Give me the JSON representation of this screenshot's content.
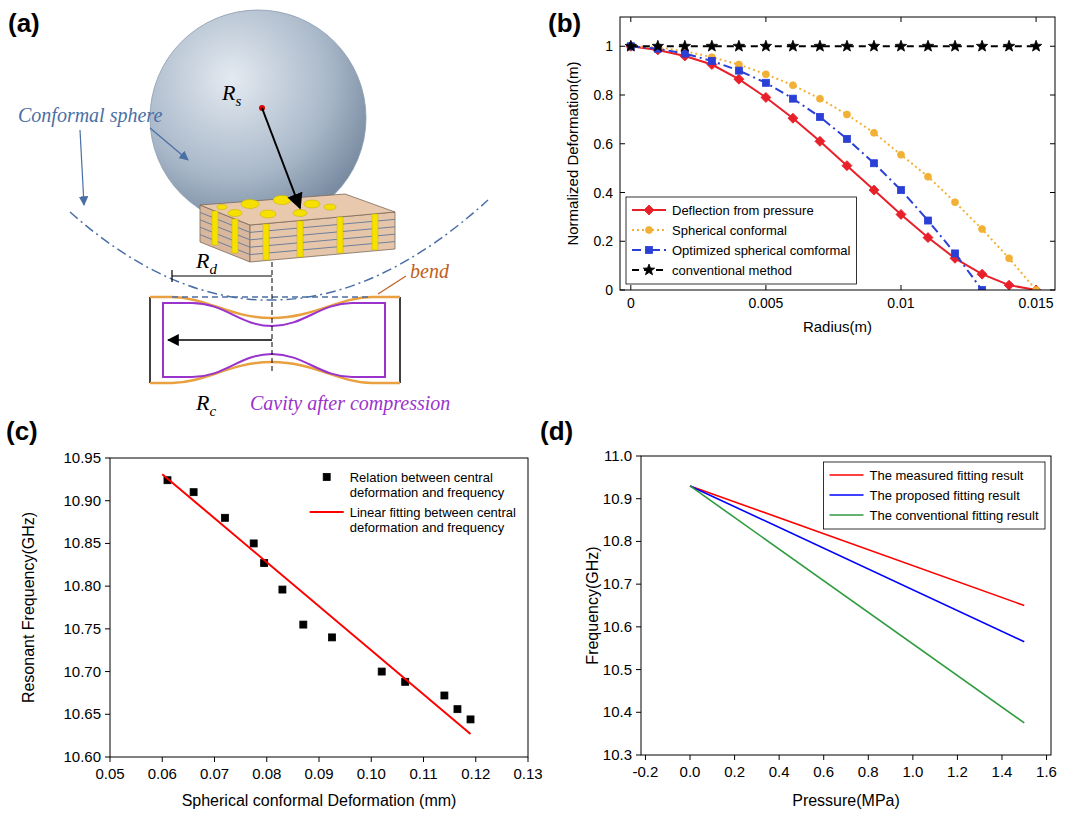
{
  "diagram": {
    "panel_label": "(a)",
    "sphere_radius": {
      "text": "R",
      "sub": "s"
    },
    "conformal_sphere": "Conformal sphere",
    "deform_radius": {
      "text": "R",
      "sub": "d"
    },
    "bend": "bend",
    "cavity_radius": {
      "text": "R",
      "sub": "c"
    },
    "cavity": "Cavity after compression"
  },
  "chart_data": [
    {
      "type": "line",
      "panel_label": "(b)",
      "x_label": "Radius(m)",
      "y_label": "Normalized Deformation(m)",
      "xlim": [
        -0.0004,
        0.0157
      ],
      "xticks": [
        0,
        0.005,
        0.01,
        0.015
      ],
      "ylim": [
        0,
        1.12
      ],
      "yticks": [
        0,
        0.2,
        0.4,
        0.6,
        0.8,
        1
      ],
      "grid": false,
      "legend": "lower left",
      "series": [
        {
          "name": "Deflection from pressure",
          "color": "#e8202a",
          "marker": "diamond",
          "line_style": "solid",
          "x": [
            0,
            0.001,
            0.002,
            0.003,
            0.004,
            0.005,
            0.006,
            0.007,
            0.008,
            0.009,
            0.01,
            0.011,
            0.012,
            0.013,
            0.014,
            0.015
          ],
          "values": [
            1,
            0.985,
            0.96,
            0.925,
            0.865,
            0.79,
            0.705,
            0.61,
            0.51,
            0.41,
            0.31,
            0.215,
            0.13,
            0.065,
            0.02,
            0
          ]
        },
        {
          "name": "Spherical conformal",
          "color": "#f2b135",
          "marker": "circle",
          "line_style": "dotted",
          "x": [
            0,
            0.001,
            0.002,
            0.003,
            0.004,
            0.005,
            0.006,
            0.007,
            0.008,
            0.009,
            0.01,
            0.011,
            0.012,
            0.013,
            0.014,
            0.015
          ],
          "values": [
            1,
            0.995,
            0.98,
            0.955,
            0.925,
            0.885,
            0.84,
            0.785,
            0.72,
            0.645,
            0.555,
            0.465,
            0.36,
            0.25,
            0.13,
            0
          ]
        },
        {
          "name": "Optimized spherical comformal",
          "color": "#2a3fd6",
          "marker": "square",
          "line_style": "dashdot",
          "x": [
            0,
            0.001,
            0.002,
            0.003,
            0.004,
            0.005,
            0.006,
            0.007,
            0.008,
            0.009,
            0.01,
            0.011,
            0.012,
            0.013
          ],
          "values": [
            1,
            0.99,
            0.97,
            0.94,
            0.9,
            0.85,
            0.785,
            0.71,
            0.62,
            0.52,
            0.41,
            0.285,
            0.15,
            0
          ]
        },
        {
          "name": "conventional method",
          "color": "#000000",
          "marker": "star",
          "line_style": "dashed",
          "x": [
            0,
            0.001,
            0.002,
            0.003,
            0.004,
            0.005,
            0.006,
            0.007,
            0.008,
            0.009,
            0.01,
            0.011,
            0.012,
            0.013,
            0.014,
            0.015
          ],
          "values": [
            1,
            1,
            1,
            1,
            1,
            1,
            1,
            1,
            1,
            1,
            1,
            1,
            1,
            1,
            1,
            1
          ]
        }
      ]
    },
    {
      "type": "scatter",
      "panel_label": "(c)",
      "x_label": "Spherical conformal Deformation (mm)",
      "y_label": "Resonant Frequency(GHz)",
      "xlim": [
        0.05,
        0.13
      ],
      "xticks": [
        0.05,
        0.06,
        0.07,
        0.08,
        0.09,
        {
          "value": 0.1,
          "label": "0.10"
        },
        0.11,
        0.12,
        0.13
      ],
      "ylim": [
        10.6,
        10.95
      ],
      "yticks": [
        {
          "value": 10.6,
          "label": "10.60"
        },
        10.65,
        {
          "value": 10.7,
          "label": "10.70"
        },
        10.75,
        {
          "value": 10.8,
          "label": "10.80"
        },
        10.85,
        {
          "value": 10.9,
          "label": "10.90"
        },
        10.95
      ],
      "grid": false,
      "legend": "upper right",
      "series": [
        {
          "name": "Relation between central deformation and frequency",
          "type": "scatter",
          "color": "#000000",
          "marker": "square",
          "x": [
            0.061,
            0.066,
            0.072,
            0.0775,
            0.0795,
            0.083,
            0.087,
            0.0925,
            0.102,
            0.1065,
            0.114,
            0.1165,
            0.119
          ],
          "values": [
            10.924,
            10.91,
            10.88,
            10.85,
            10.827,
            10.796,
            10.755,
            10.74,
            10.7,
            10.688,
            10.672,
            10.656,
            10.644
          ]
        },
        {
          "name": "Linear fitting between central deformation and frequency",
          "type": "line",
          "color": "#ff0000",
          "line_style": "solid",
          "x": [
            0.06,
            0.119
          ],
          "values": [
            10.931,
            10.627
          ]
        }
      ]
    },
    {
      "type": "line",
      "panel_label": "(d)",
      "x_label": "Pressure(MPa)",
      "y_label": "Frequency(GHz)",
      "xlim": [
        -0.22,
        1.62
      ],
      "xticks": [
        -0.2,
        {
          "value": 0,
          "label": "0.0"
        },
        0.2,
        0.4,
        0.6,
        0.8,
        {
          "value": 1,
          "label": "1.0"
        },
        1.2,
        1.4,
        1.6
      ],
      "ylim": [
        10.3,
        11.0
      ],
      "yticks": [
        10.3,
        10.4,
        10.5,
        10.6,
        10.7,
        10.8,
        10.9,
        {
          "value": 11,
          "label": "11.0"
        }
      ],
      "grid": false,
      "legend": "upper right",
      "series": [
        {
          "name": "The measured fitting result",
          "color": "#ff0000",
          "line_style": "solid",
          "x": [
            0,
            1.5
          ],
          "values": [
            10.93,
            10.65
          ]
        },
        {
          "name": "The proposed fitting result",
          "color": "#0000ff",
          "line_style": "solid",
          "x": [
            0,
            1.5
          ],
          "values": [
            10.93,
            10.565
          ]
        },
        {
          "name": "The conventional fitting result",
          "color": "#2e9b3e",
          "line_style": "solid",
          "x": [
            0,
            1.5
          ],
          "values": [
            10.93,
            10.375
          ]
        }
      ]
    }
  ]
}
